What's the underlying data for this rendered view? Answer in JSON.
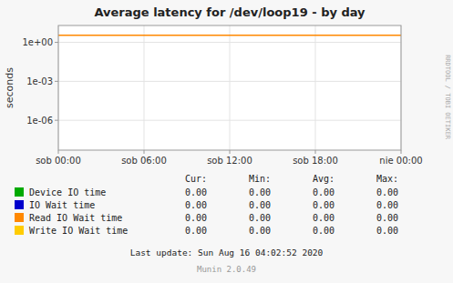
{
  "chart_data": {
    "type": "line",
    "title": "Average latency for /dev/loop19 - by day",
    "ylabel": "seconds",
    "log": "y",
    "grid": true,
    "xlim": [
      0,
      1
    ],
    "xticks": [
      {
        "value": 0.0,
        "label": "sob 00:00"
      },
      {
        "value": 0.25,
        "label": "sob 06:00"
      },
      {
        "value": 0.5,
        "label": "sob 12:00"
      },
      {
        "value": 0.75,
        "label": "sob 18:00"
      },
      {
        "value": 1.0,
        "label": "nie 00:00"
      }
    ],
    "ylim": [
      5e-09,
      20
    ],
    "yticks": [
      {
        "value": 1e-06,
        "label": "1e-06"
      },
      {
        "value": 0.001,
        "label": "1e-03"
      },
      {
        "value": 1,
        "label": "1e+00"
      }
    ],
    "hlines": [
      {
        "value": 3.5,
        "color": "#ff8800"
      }
    ],
    "legend_columns": [
      "Cur:",
      "Min:",
      "Avg:",
      "Max:"
    ],
    "series": [
      {
        "name": "Device IO time",
        "color": "#00aa00",
        "values": [
          0.0,
          0.0,
          0.0,
          0.0
        ],
        "value_labels": [
          "0.00",
          "0.00",
          "0.00",
          "0.00"
        ]
      },
      {
        "name": "IO Wait time",
        "color": "#0000cc",
        "values": [
          0.0,
          0.0,
          0.0,
          0.0
        ],
        "value_labels": [
          "0.00",
          "0.00",
          "0.00",
          "0.00"
        ]
      },
      {
        "name": "Read IO Wait time",
        "color": "#ff8800",
        "values": [
          0.0,
          0.0,
          0.0,
          0.0
        ],
        "value_labels": [
          "0.00",
          "0.00",
          "0.00",
          "0.00"
        ]
      },
      {
        "name": "Write IO Wait time",
        "color": "#ffcc00",
        "values": [
          0.0,
          0.0,
          0.0,
          0.0
        ],
        "value_labels": [
          "0.00",
          "0.00",
          "0.00",
          "0.00"
        ]
      }
    ],
    "annotations": [
      "Last update: Sun Aug 16 04:02:52 2020",
      "Munin 2.0.49",
      "RRDTOOL / TOBI OETIKER"
    ]
  }
}
